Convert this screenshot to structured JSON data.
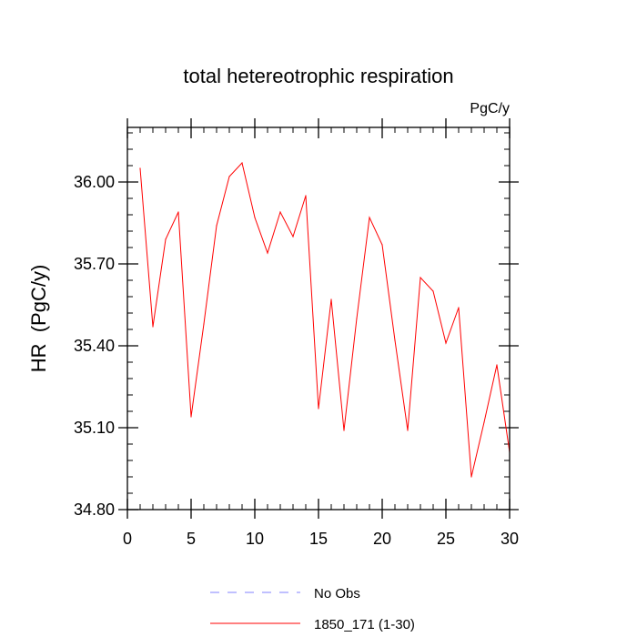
{
  "chart_data": {
    "type": "line",
    "title": "total hetereotrophic respiration",
    "units_label": "PgC/y",
    "xlabel": "",
    "ylabel": "HR  (PgC/y)",
    "xlim": [
      0,
      30
    ],
    "ylim": [
      34.8,
      36.2
    ],
    "xticks": [
      0,
      5,
      10,
      15,
      20,
      25,
      30
    ],
    "xtick_labels": [
      "0",
      "5",
      "10",
      "15",
      "20",
      "25",
      "30"
    ],
    "yticks": [
      34.8,
      35.1,
      35.4,
      35.7,
      36.0
    ],
    "ytick_labels": [
      "34.80",
      "35.10",
      "35.40",
      "35.70",
      "36.00"
    ],
    "grid": false,
    "legend_position": "bottom-center",
    "series": [
      {
        "name": "No Obs",
        "color": "#8080ff",
        "style": "dashed",
        "x": [],
        "values": []
      },
      {
        "name": "1850_171 (1-30)",
        "color": "#ff0000",
        "style": "solid",
        "x": [
          1,
          2,
          3,
          4,
          5,
          6,
          7,
          8,
          9,
          10,
          11,
          12,
          13,
          14,
          15,
          16,
          17,
          18,
          19,
          20,
          21,
          22,
          23,
          24,
          25,
          26,
          27,
          28,
          29,
          30
        ],
        "values": [
          36.05,
          35.47,
          35.79,
          35.89,
          35.14,
          35.48,
          35.84,
          36.02,
          36.07,
          35.87,
          35.74,
          35.89,
          35.8,
          35.95,
          35.17,
          35.57,
          35.09,
          35.5,
          35.87,
          35.77,
          35.42,
          35.09,
          35.65,
          35.6,
          35.41,
          35.54,
          34.92,
          35.12,
          35.33,
          35.01
        ]
      }
    ]
  }
}
